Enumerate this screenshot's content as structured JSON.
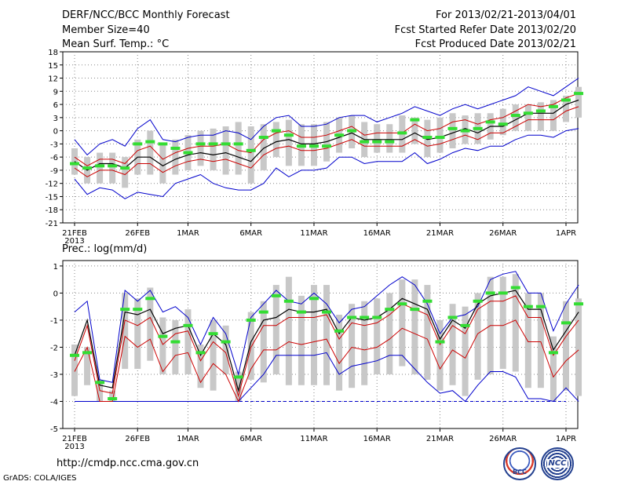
{
  "header": {
    "title": "DERF/NCC/BCC Monthly Forecast",
    "member_size": "Member Size=40",
    "variable": "Mean Surf. Temp.: °C",
    "period": "For 2013/02/21-2013/04/01",
    "started": "Fcst Started Refer Date 2013/02/20",
    "produced": "Fcst Produced Date 2013/02/21"
  },
  "footer": {
    "url": "http://cmdp.ncc.cma.gov.cn",
    "credit": "GrADS: COLA/IGES",
    "logo1": "BCC",
    "logo2": "NCC"
  },
  "colors": {
    "max": "#0000cc",
    "mean": "#000000",
    "spread": "#cc0000",
    "box": "#c8c8c8",
    "median": "#33dd33",
    "floor": "#0000cc"
  },
  "chart_data": [
    {
      "type": "box",
      "title": "Mean Surf. Temp.: °C",
      "ylabel": "°C",
      "ylim": [
        -21,
        18
      ],
      "yticks": [
        18,
        15,
        12,
        9,
        6,
        3,
        0,
        -3,
        -6,
        -9,
        -12,
        -15,
        -18,
        -21
      ],
      "xtick_labels": [
        "21FEB",
        "26FEB",
        "1MAR",
        "6MAR",
        "11MAR",
        "16MAR",
        "21MAR",
        "26MAR",
        "1APR"
      ],
      "xtick_days": [
        0,
        5,
        9,
        14,
        19,
        24,
        29,
        34,
        39
      ],
      "year_label": "2013",
      "series": [
        {
          "name": "max",
          "values": [
            -2,
            -5.5,
            -3,
            -2,
            -3.5,
            0.5,
            2.5,
            -2,
            -2.5,
            -1.5,
            -1,
            -1,
            0,
            -0.5,
            -2,
            1,
            3,
            3.5,
            1,
            1,
            1.5,
            3,
            3.5,
            3.5,
            2,
            3,
            4,
            5.5,
            4.5,
            3.5,
            5,
            6,
            5,
            6,
            7,
            8,
            10,
            9,
            8,
            10,
            12
          ]
        },
        {
          "name": "upper",
          "values": [
            -6,
            -8,
            -6.5,
            -6.5,
            -7.5,
            -4.5,
            -3.5,
            -6.5,
            -5,
            -4,
            -3.5,
            -3.5,
            -3,
            -4.5,
            -5,
            -2,
            -0.5,
            0,
            -1.5,
            -1.5,
            -1,
            0,
            1,
            -1,
            -0.5,
            -0.5,
            -0.5,
            1.5,
            0,
            0.5,
            2,
            2.5,
            1.5,
            2.5,
            3,
            4.5,
            6,
            5.5,
            6,
            7.5,
            8.5
          ]
        },
        {
          "name": "mean",
          "values": [
            -7,
            -9,
            -7.5,
            -7.5,
            -8.5,
            -6,
            -6,
            -8,
            -6.5,
            -5.5,
            -5,
            -5.5,
            -5,
            -6,
            -7,
            -4,
            -2.5,
            -2,
            -3,
            -3,
            -2.5,
            -1.5,
            -0.5,
            -2,
            -2,
            -2,
            -2,
            -0.5,
            -2,
            -1.5,
            -0.5,
            0.5,
            -0.5,
            1,
            1,
            2.5,
            4,
            4,
            4,
            6,
            7
          ]
        },
        {
          "name": "lower",
          "values": [
            -8.5,
            -10.5,
            -9,
            -9,
            -10,
            -7.5,
            -7.5,
            -9.5,
            -8,
            -7,
            -6.5,
            -7,
            -6.5,
            -7.5,
            -8.5,
            -5.5,
            -4,
            -3.5,
            -4.5,
            -4.5,
            -4,
            -3,
            -2,
            -3.5,
            -3.5,
            -3.5,
            -3.5,
            -2,
            -3.5,
            -3,
            -2,
            -1,
            -2,
            -0.5,
            -0.5,
            1,
            2.5,
            2.5,
            2.5,
            4.5,
            5.5
          ]
        },
        {
          "name": "min",
          "values": [
            -11,
            -14.5,
            -13,
            -13.5,
            -15.5,
            -14,
            -14.5,
            -15,
            -12,
            -11,
            -10,
            -12,
            -13,
            -13.5,
            -13.5,
            -12,
            -8.5,
            -10.5,
            -9,
            -9,
            -8.5,
            -6,
            -6,
            -7.5,
            -7,
            -7,
            -7,
            -5,
            -7.5,
            -6.5,
            -5,
            -4,
            -4.5,
            -3.5,
            -3.5,
            -2,
            -1,
            -1,
            -1.5,
            0,
            0.5
          ]
        },
        {
          "name": "median",
          "values": [
            -7.5,
            -8.5,
            -8,
            -8,
            -8.5,
            -3,
            -2.5,
            -3,
            -4,
            -5,
            -3,
            -3,
            -3,
            -3,
            -4.5,
            -1.5,
            0,
            -1,
            -3.5,
            -3.5,
            -3.5,
            -1,
            0,
            -2.5,
            -2.5,
            -2.5,
            -0.5,
            2.5,
            -1.5,
            -1.5,
            0.5,
            0,
            0.5,
            2,
            1.5,
            3.5,
            4,
            4.5,
            5.5,
            7,
            8.5
          ]
        },
        {
          "name": "box_high",
          "values": [
            -4,
            -6,
            -5,
            -5,
            -6,
            -2,
            0,
            -3,
            -2,
            -1,
            0,
            0.5,
            1,
            2,
            1,
            1.5,
            2,
            2.5,
            1.5,
            1.5,
            2,
            3,
            3.5,
            2,
            1.5,
            1.5,
            3.5,
            3,
            2.5,
            3,
            4,
            3.5,
            4,
            4,
            5,
            6,
            6,
            6.5,
            7,
            8,
            10
          ]
        },
        {
          "name": "box_low",
          "values": [
            -10,
            -12,
            -12,
            -12,
            -13,
            -10,
            -10,
            -12,
            -10,
            -9,
            -8,
            -9,
            -10,
            -10,
            -12,
            -9,
            -6,
            -8,
            -8,
            -8,
            -7,
            -5,
            -4,
            -6,
            -5,
            -5,
            -5,
            -3,
            -6,
            -5,
            -4,
            -3,
            -3,
            -2,
            -1,
            0,
            0,
            0,
            0,
            2,
            3
          ]
        }
      ]
    },
    {
      "type": "box",
      "title": "Prec.: log(mm/d)",
      "ylabel": "log(mm/d)",
      "ylim": [
        -5,
        1.2
      ],
      "yticks": [
        1,
        0,
        -1,
        -2,
        -3,
        -4,
        -5
      ],
      "xtick_labels": [
        "21FEB",
        "26FEB",
        "1MAR",
        "6MAR",
        "11MAR",
        "16MAR",
        "21MAR",
        "26MAR",
        "1APR"
      ],
      "xtick_days": [
        0,
        5,
        9,
        14,
        19,
        24,
        29,
        34,
        39
      ],
      "year_label": "2013",
      "series": [
        {
          "name": "max",
          "values": [
            -0.7,
            -0.3,
            -3.2,
            -3.3,
            0.1,
            -0.3,
            0.1,
            -0.7,
            -0.5,
            -0.9,
            -1.9,
            -0.9,
            -1.5,
            -3.0,
            -0.9,
            -0.4,
            0.1,
            -0.3,
            -0.4,
            0.0,
            -0.4,
            -1.1,
            -0.6,
            -0.5,
            -0.1,
            0.3,
            0.6,
            0.3,
            -0.4,
            -1.5,
            -0.9,
            -0.8,
            -0.5,
            0.5,
            0.7,
            0.8,
            0.0,
            0.0,
            -1.4,
            -0.4,
            0.3
          ]
        },
        {
          "name": "mean",
          "values": [
            -2.3,
            -1.0,
            -3.4,
            -3.5,
            -0.7,
            -0.8,
            -0.6,
            -1.5,
            -1.3,
            -1.2,
            -2.3,
            -1.5,
            -1.9,
            -3.6,
            -1.8,
            -1.0,
            -0.9,
            -0.6,
            -0.7,
            -0.7,
            -0.6,
            -1.5,
            -0.9,
            -1.0,
            -0.9,
            -0.6,
            -0.2,
            -0.4,
            -0.6,
            -1.7,
            -1.0,
            -1.3,
            -0.4,
            -0.1,
            0.0,
            0.1,
            -0.6,
            -0.6,
            -2.1,
            -1.4,
            -0.7
          ]
        },
        {
          "name": "upper",
          "values": [
            -2.5,
            -1.2,
            -3.6,
            -3.7,
            -1.0,
            -1.2,
            -0.9,
            -1.9,
            -1.5,
            -1.4,
            -2.5,
            -1.8,
            -2.2,
            -3.8,
            -2.0,
            -1.2,
            -1.2,
            -0.9,
            -0.9,
            -0.9,
            -0.8,
            -1.7,
            -1.1,
            -1.2,
            -1.1,
            -0.8,
            -0.4,
            -0.6,
            -0.8,
            -1.9,
            -1.2,
            -1.5,
            -0.6,
            -0.3,
            -0.3,
            -0.1,
            -0.9,
            -0.9,
            -2.3,
            -1.6,
            -1.0
          ]
        },
        {
          "name": "lower",
          "values": [
            -2.9,
            -2.0,
            -4.0,
            -4.0,
            -1.6,
            -2.0,
            -1.7,
            -2.9,
            -2.3,
            -2.2,
            -3.3,
            -2.6,
            -3.0,
            -4.0,
            -2.8,
            -2.1,
            -2.1,
            -1.8,
            -1.9,
            -1.8,
            -1.7,
            -2.6,
            -2.0,
            -2.1,
            -2.0,
            -1.7,
            -1.3,
            -1.5,
            -1.7,
            -2.8,
            -2.1,
            -2.4,
            -1.5,
            -1.2,
            -1.2,
            -1.0,
            -1.8,
            -1.8,
            -3.1,
            -2.5,
            -2.1
          ]
        },
        {
          "name": "min",
          "values": [
            -4.0,
            -4.0,
            -4.0,
            -4.0,
            -4.0,
            -4.0,
            -4.0,
            -4.0,
            -4.0,
            -4.0,
            -4.0,
            -4.0,
            -4.0,
            -4.0,
            -3.5,
            -3.0,
            -2.3,
            -2.3,
            -2.3,
            -2.3,
            -2.2,
            -3.0,
            -2.7,
            -2.6,
            -2.5,
            -2.3,
            -2.3,
            -2.8,
            -3.3,
            -3.7,
            -3.6,
            -4.0,
            -3.4,
            -2.9,
            -2.9,
            -3.1,
            -3.9,
            -3.9,
            -4.0,
            -3.5,
            -4.0
          ]
        },
        {
          "name": "median",
          "values": [
            -2.3,
            -2.2,
            -3.3,
            -3.9,
            -0.6,
            -0.6,
            -0.2,
            -1.6,
            -1.8,
            -1.2,
            -2.2,
            -1.5,
            -1.8,
            -3.1,
            -1.0,
            -0.7,
            -0.1,
            -0.3,
            -0.7,
            -0.2,
            -0.7,
            -1.4,
            -0.9,
            -0.9,
            -0.9,
            -0.6,
            -0.4,
            -0.6,
            -0.3,
            -1.8,
            -0.9,
            -1.2,
            -0.3,
            0.0,
            0.0,
            0.2,
            -0.5,
            -0.5,
            -2.2,
            -1.1,
            -0.4
          ]
        },
        {
          "name": "box_high",
          "values": [
            -1.9,
            -2.0,
            -3.2,
            -3.6,
            0.0,
            -0.2,
            0.2,
            -0.9,
            -1.0,
            -0.6,
            -1.9,
            -1.0,
            -1.2,
            -2.9,
            -0.7,
            -0.3,
            0.3,
            0.6,
            -0.1,
            0.3,
            0.3,
            -0.8,
            -0.4,
            -0.3,
            -0.2,
            0.0,
            0.5,
            0.5,
            0.3,
            -1.0,
            -0.4,
            -0.5,
            0.0,
            0.6,
            0.6,
            0.7,
            0.0,
            0.0,
            -1.6,
            -0.3,
            -0.2
          ]
        },
        {
          "name": "box_low",
          "values": [
            -3.8,
            -3.4,
            -4.0,
            -4.0,
            -2.8,
            -2.8,
            -2.5,
            -3.0,
            -3.0,
            -3.0,
            -3.5,
            -3.6,
            -3.0,
            -4.0,
            -3.2,
            -3.3,
            -3.0,
            -3.4,
            -3.4,
            -3.4,
            -3.4,
            -3.6,
            -3.5,
            -3.4,
            -3.0,
            -3.0,
            -2.7,
            -3.0,
            -3.2,
            -3.6,
            -3.4,
            -3.8,
            -3.2,
            -3.0,
            -2.8,
            -2.9,
            -3.5,
            -3.5,
            -4.0,
            -3.6,
            -3.8
          ]
        }
      ],
      "floor": -4
    }
  ]
}
